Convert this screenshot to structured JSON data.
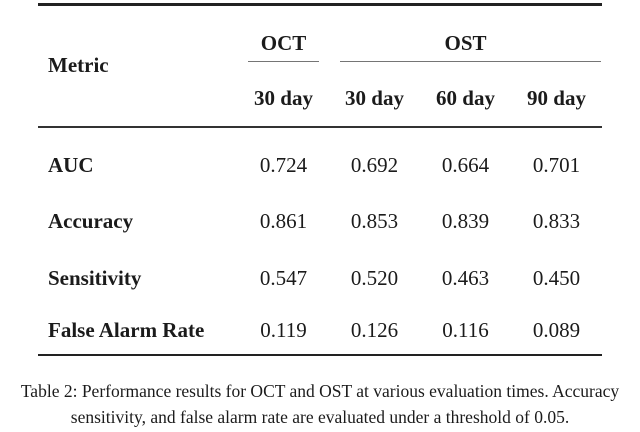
{
  "table": {
    "header": {
      "metric_label": "Metric",
      "groups": [
        {
          "label": "OCT",
          "span": 1
        },
        {
          "label": "OST",
          "span": 3
        }
      ],
      "subheaders": [
        "30 day",
        "30 day",
        "60 day",
        "90 day"
      ]
    },
    "rows": [
      {
        "label": "AUC",
        "values": [
          "0.724",
          "0.692",
          "0.664",
          "0.701"
        ]
      },
      {
        "label": "Accuracy",
        "values": [
          "0.861",
          "0.853",
          "0.839",
          "0.833"
        ]
      },
      {
        "label": "Sensitivity",
        "values": [
          "0.547",
          "0.520",
          "0.463",
          "0.450"
        ]
      },
      {
        "label": "False Alarm Rate",
        "values": [
          "0.119",
          "0.126",
          "0.116",
          "0.089"
        ]
      }
    ]
  },
  "caption": {
    "line1": "Table 2: Performance results for OCT and OST at various evaluation times. Accuracy",
    "line2": "sensitivity, and false alarm rate are evaluated under a threshold of 0.05."
  },
  "colors": {
    "ink": "#1b1b1b",
    "rule_heavy": "#222222",
    "rule_mid": "#333333",
    "rule_light": "#757575",
    "background": "#ffffff"
  }
}
